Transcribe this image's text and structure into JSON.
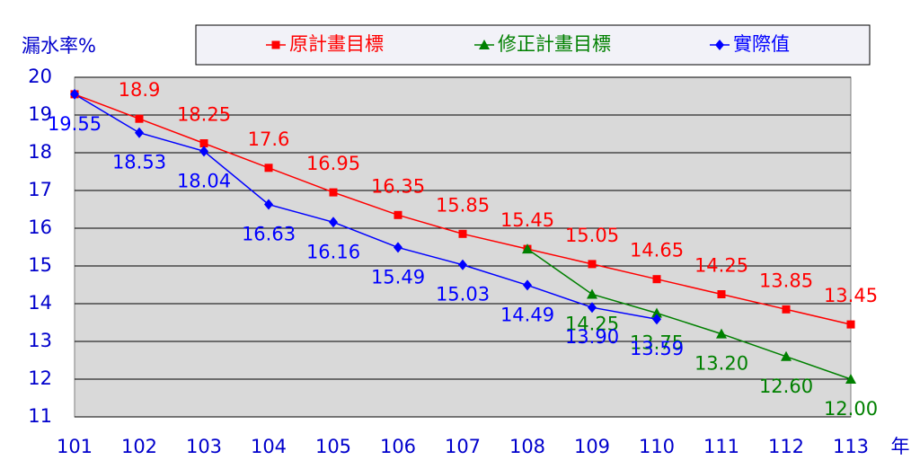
{
  "chart_data": {
    "type": "line",
    "y_label": "漏水率%",
    "x_label": "年",
    "categories": [
      "101",
      "102",
      "103",
      "104",
      "105",
      "106",
      "107",
      "108",
      "109",
      "110",
      "111",
      "112",
      "113"
    ],
    "ylim": [
      11,
      20
    ],
    "yticks": [
      11,
      12,
      13,
      14,
      15,
      16,
      17,
      18,
      19,
      20
    ],
    "grid": true,
    "legend": "top",
    "series": [
      {
        "name": "原計畫目標",
        "color": "#ff0000",
        "marker": "square",
        "values": [
          19.55,
          18.9,
          18.25,
          17.6,
          16.95,
          16.35,
          15.85,
          15.45,
          15.05,
          14.65,
          14.25,
          13.85,
          13.45
        ],
        "value_labels": [
          null,
          "18.9",
          "18.25",
          "17.6",
          "16.95",
          "16.35",
          "15.85",
          "15.45",
          "15.05",
          "14.65",
          "14.25",
          "13.85",
          "13.45"
        ]
      },
      {
        "name": "修正計畫目標",
        "color": "#008000",
        "marker": "triangle",
        "values": [
          null,
          null,
          null,
          null,
          null,
          null,
          null,
          15.45,
          14.25,
          13.75,
          13.2,
          12.6,
          12.0
        ],
        "value_labels": [
          null,
          null,
          null,
          null,
          null,
          null,
          null,
          null,
          "14.25",
          "13.75",
          "13.20",
          "12.60",
          "12.00"
        ]
      },
      {
        "name": "實際值",
        "color": "#0000ff",
        "marker": "diamond",
        "values": [
          19.55,
          18.53,
          18.04,
          16.63,
          16.16,
          15.49,
          15.03,
          14.49,
          13.9,
          13.59,
          null,
          null,
          null
        ],
        "value_labels": [
          "19.55",
          "18.53",
          "18.04",
          "16.63",
          "16.16",
          "15.49",
          "15.03",
          "14.49",
          "13.90",
          "13.59",
          null,
          null,
          null
        ]
      }
    ]
  }
}
